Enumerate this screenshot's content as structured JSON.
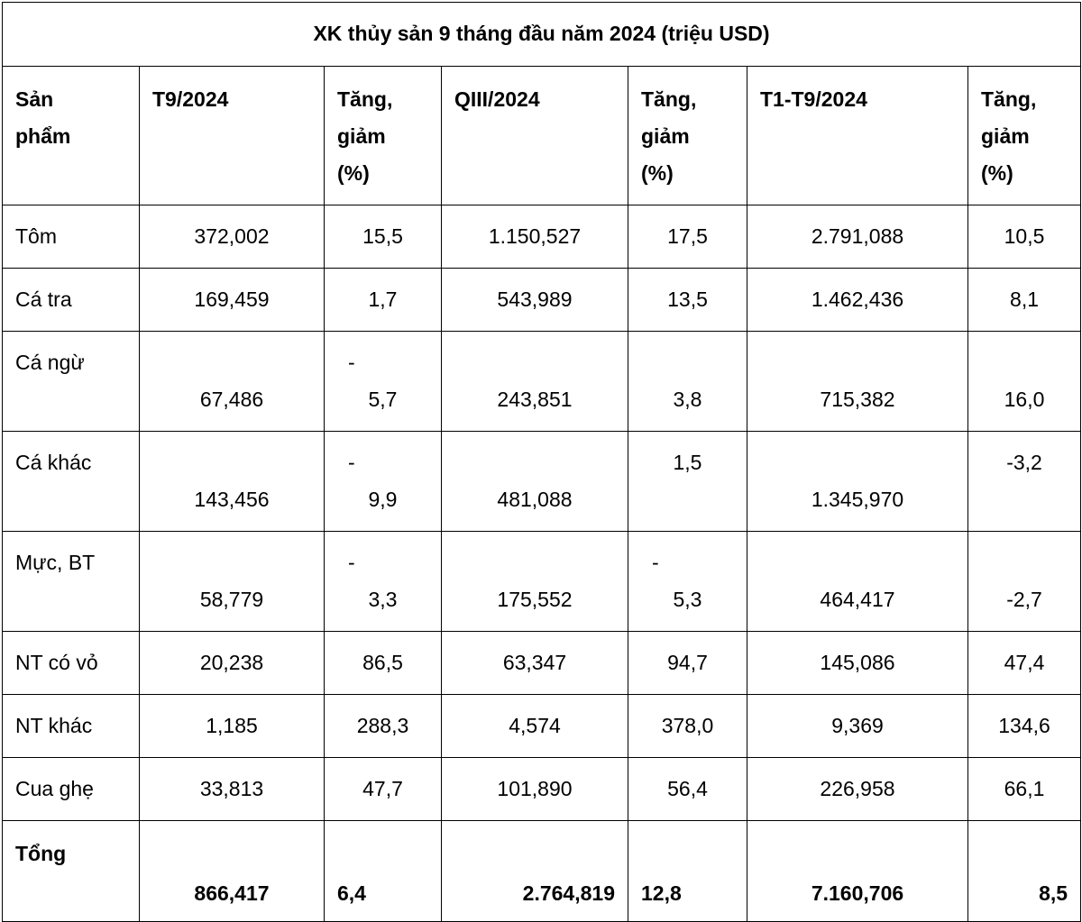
{
  "title": "XK thủy sản 9 tháng đầu năm 2024 (triệu USD)",
  "headers": {
    "product": [
      "Sản",
      "phẩm"
    ],
    "t9": "T9/2024",
    "t9_change": [
      "Tăng,",
      "giảm",
      "(%)"
    ],
    "q3": "QIII/2024",
    "q3_change": [
      "Tăng,",
      "giảm",
      "(%)"
    ],
    "t1t9": "T1-T9/2024",
    "t1t9_change": [
      "Tăng,",
      "giảm",
      "(%)"
    ]
  },
  "rows": [
    {
      "product": "Tôm",
      "t9": "372,002",
      "t9_change": "15,5",
      "q3": "1.150,527",
      "q3_change": "17,5",
      "t1t9": "2.791,088",
      "t1t9_change": "10,5"
    },
    {
      "product": "Cá tra",
      "t9": "169,459",
      "t9_change": "1,7",
      "q3": "543,989",
      "q3_change": "13,5",
      "t1t9": "1.462,436",
      "t1t9_change": "8,1"
    },
    {
      "product": "Cá ngừ",
      "t9": "67,486",
      "t9_change_sign": "-",
      "t9_change": "5,7",
      "q3": "243,851",
      "q3_change": "3,8",
      "t1t9": "715,382",
      "t1t9_change": "16,0"
    },
    {
      "product": "Cá khác",
      "t9": "143,456",
      "t9_change_sign": "-",
      "t9_change": "9,9",
      "q3": "481,088",
      "q3_change": "1,5",
      "t1t9": "1.345,970",
      "t1t9_change": "-3,2"
    },
    {
      "product": "Mực, BT",
      "t9": "58,779",
      "t9_change_sign": "-",
      "t9_change": "3,3",
      "q3": "175,552",
      "q3_change_sign": "-",
      "q3_change": "5,3",
      "t1t9": "464,417",
      "t1t9_change": "-2,7"
    },
    {
      "product": "NT có vỏ",
      "t9": "20,238",
      "t9_change": "86,5",
      "q3": "63,347",
      "q3_change": "94,7",
      "t1t9": "145,086",
      "t1t9_change": "47,4"
    },
    {
      "product": "NT khác",
      "t9": "1,185",
      "t9_change": "288,3",
      "q3": "4,574",
      "q3_change": "378,0",
      "t1t9": "9,369",
      "t1t9_change": "134,6"
    },
    {
      "product": "Cua ghẹ",
      "t9": "33,813",
      "t9_change": "47,7",
      "q3": "101,890",
      "q3_change": "56,4",
      "t1t9": "226,958",
      "t1t9_change": "66,1"
    }
  ],
  "total": {
    "product": "Tổng",
    "t9": "866,417",
    "t9_change": "6,4",
    "q3": "2.764,819",
    "q3_change": "12,8",
    "t1t9": "7.160,706",
    "t1t9_change": "8,5"
  }
}
